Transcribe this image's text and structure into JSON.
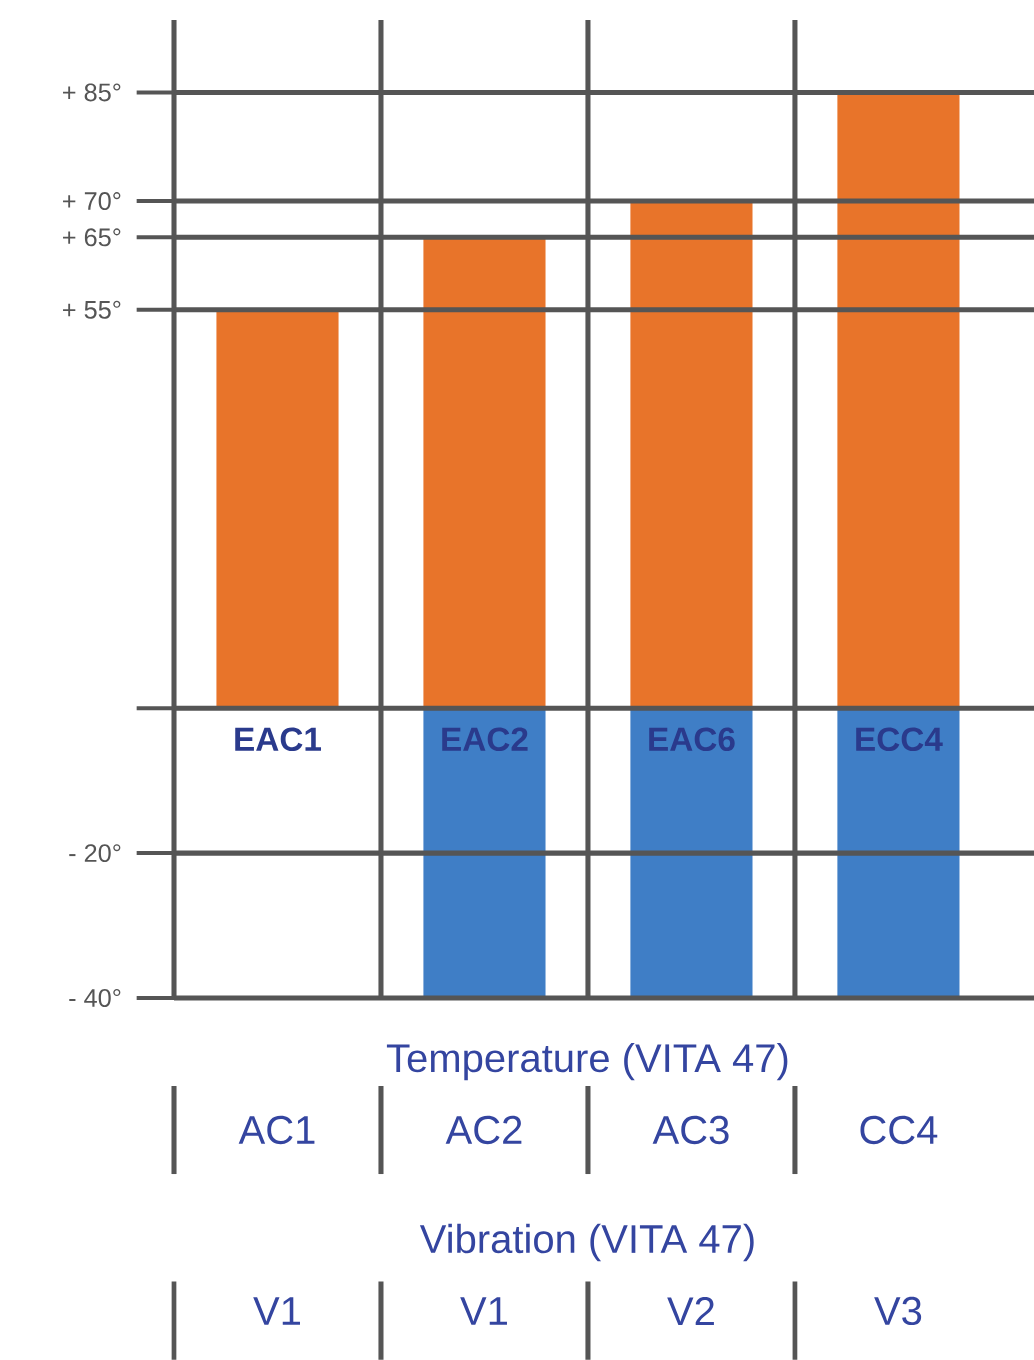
{
  "chart_data": {
    "type": "bar",
    "categories": [
      "EAC1",
      "EAC2",
      "EAC6",
      "ECC4"
    ],
    "series": [
      {
        "color": "#e8742a",
        "values": [
          55,
          65,
          70,
          85
        ]
      },
      {
        "color": "#3f7ec6",
        "values": [
          null,
          -40,
          -40,
          -40
        ]
      }
    ],
    "ylim": [
      -40,
      95
    ],
    "yticks": [
      {
        "value": -40,
        "label": "- 40°"
      },
      {
        "value": -20,
        "label": "- 20°"
      },
      {
        "value": 0,
        "label": null
      },
      {
        "value": 55,
        "label": "+ 55°"
      },
      {
        "value": 65,
        "label": "+ 65°"
      },
      {
        "value": 70,
        "label": "+ 70°"
      },
      {
        "value": 85,
        "label": "+ 85°"
      }
    ],
    "grid": "y",
    "stacked": true,
    "annotations": [
      "Temperature (VITA 47)",
      "AC1",
      "AC2",
      "AC3",
      "CC4",
      "Vibration (VITA 47)",
      "V1",
      "V1",
      "V2",
      "V3"
    ]
  }
}
